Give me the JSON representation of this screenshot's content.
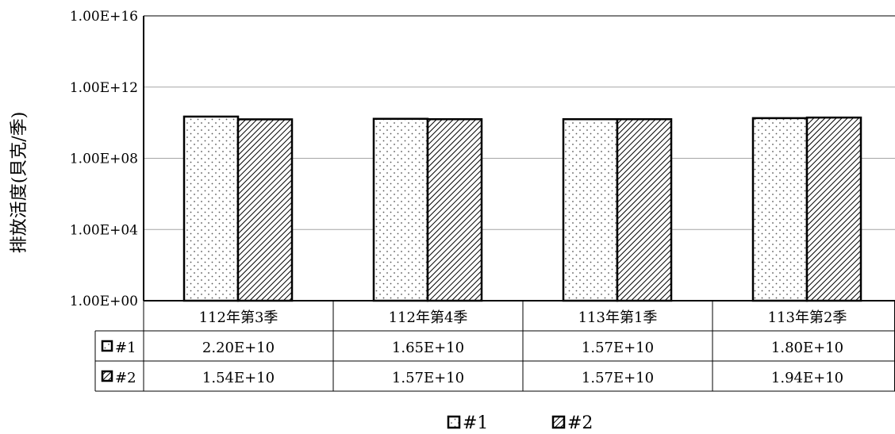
{
  "chart_data": {
    "type": "bar",
    "title": "",
    "xlabel": "",
    "ylabel": "排放活度(貝克/季)",
    "yscale": "log",
    "ylim": [
      1,
      1e+16
    ],
    "yticks": [
      {
        "value": 1,
        "label": "1.00E+00"
      },
      {
        "value": 10000,
        "label": "1.00E+04"
      },
      {
        "value": 100000000,
        "label": "1.00E+08"
      },
      {
        "value": 1000000000000,
        "label": "1.00E+12"
      },
      {
        "value": 1e+16,
        "label": "1.00E+16"
      }
    ],
    "grid": true,
    "legend_position": "bottom",
    "categories": [
      "112年第3季",
      "112年第4季",
      "113年第1季",
      "113年第2季"
    ],
    "series": [
      {
        "name": "#1",
        "pattern": "dots",
        "values": [
          22000000000,
          16500000000,
          15700000000,
          18000000000
        ],
        "labels": [
          "2.20E+10",
          "1.65E+10",
          "1.57E+10",
          "1.80E+10"
        ]
      },
      {
        "name": "#2",
        "pattern": "diagonal-hatch",
        "values": [
          15400000000,
          15700000000,
          15700000000,
          19400000000
        ],
        "labels": [
          "1.54E+10",
          "1.57E+10",
          "1.57E+10",
          "1.94E+10"
        ]
      }
    ]
  },
  "colors": {
    "bar_stroke": "#000000",
    "dot_fill": "#555555",
    "hatch_stroke": "#000000",
    "gridline": "#a6a6a6",
    "axis": "#000000"
  }
}
